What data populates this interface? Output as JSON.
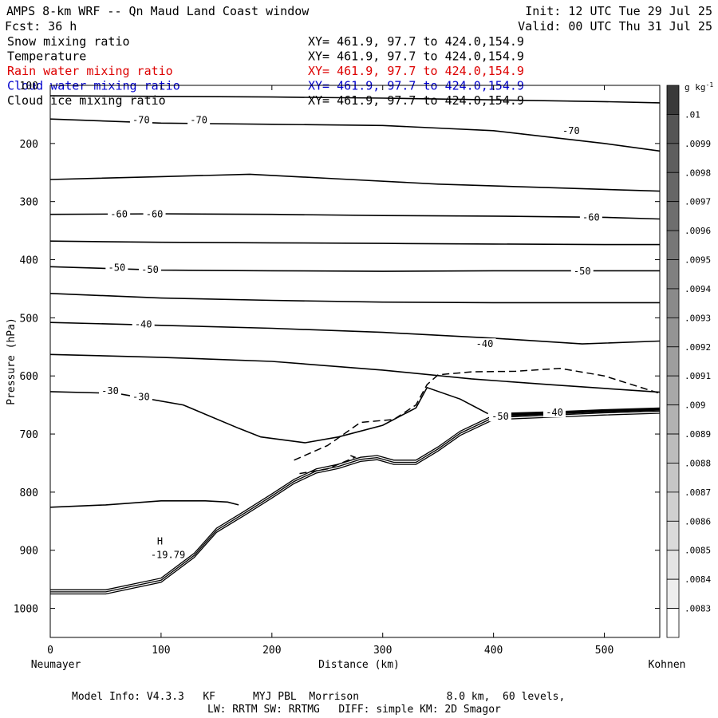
{
  "header": {
    "title": "AMPS 8-km WRF -- Qn Maud Land Coast window",
    "init": "Init: 12 UTC Tue 29 Jul 25",
    "fcst": "Fcst:   36 h",
    "valid": "Valid: 00 UTC Thu 31 Jul 25",
    "fields": [
      {
        "name": "Snow mixing ratio",
        "xy": "XY= 461.9, 97.7 to 424.0,154.9",
        "color": "#000000"
      },
      {
        "name": "Temperature",
        "xy": "XY= 461.9, 97.7 to 424.0,154.9",
        "color": "#000000"
      },
      {
        "name": "Rain water mixing ratio",
        "xy": "XY= 461.9, 97.7 to 424.0,154.9",
        "color": "#dd0000"
      },
      {
        "name": "Cloud water mixing ratio",
        "xy": "XY= 461.9, 97.7 to 424.0,154.9",
        "color": "#0000cc"
      },
      {
        "name": "Cloud ice mixing ratio",
        "xy": "XY= 461.9, 97.7 to 424.0,154.9",
        "color": "#000000"
      }
    ]
  },
  "chart_data": {
    "type": "contour",
    "xlabel": "Distance (km)",
    "ylabel": "Pressure (hPa)",
    "xlim": [
      0,
      550
    ],
    "ylim": [
      1050,
      100
    ],
    "x_ticks": [
      0,
      100,
      200,
      300,
      400,
      500
    ],
    "y_ticks": [
      100,
      200,
      300,
      400,
      500,
      600,
      700,
      800,
      900,
      1000
    ],
    "x_endpoints": {
      "left": "Neumayer",
      "right": "Kohnen"
    },
    "temperature_contours": [
      {
        "x": [
          0,
          100,
          200,
          300,
          400,
          500,
          550
        ],
        "p": [
          118,
          119,
          120,
          122,
          125,
          128,
          130
        ]
      },
      {
        "x": [
          0,
          100,
          200,
          300,
          400,
          500,
          550
        ],
        "p": [
          158,
          165,
          167,
          169,
          178,
          200,
          213
        ]
      },
      {
        "x": [
          0,
          100,
          180,
          250,
          350,
          450,
          550
        ],
        "p": [
          262,
          257,
          253,
          260,
          270,
          276,
          282
        ]
      },
      {
        "x": [
          0,
          100,
          200,
          300,
          400,
          500,
          550
        ],
        "p": [
          322,
          321,
          322,
          324,
          325,
          327,
          330
        ]
      },
      {
        "x": [
          0,
          100,
          200,
          300,
          400,
          500,
          550
        ],
        "p": [
          368,
          370,
          371,
          372,
          373,
          374,
          374
        ]
      },
      {
        "x": [
          0,
          100,
          200,
          300,
          400,
          500,
          550
        ],
        "p": [
          412,
          418,
          419,
          420,
          419,
          419,
          419
        ]
      },
      {
        "x": [
          0,
          100,
          200,
          300,
          400,
          500,
          550
        ],
        "p": [
          458,
          466,
          470,
          473,
          474,
          474,
          474
        ]
      },
      {
        "x": [
          0,
          100,
          200,
          300,
          400,
          480,
          550
        ],
        "p": [
          508,
          513,
          518,
          525,
          535,
          545,
          540
        ]
      },
      {
        "x": [
          0,
          100,
          200,
          300,
          380,
          450,
          550
        ],
        "p": [
          563,
          568,
          575,
          590,
          605,
          615,
          628
        ]
      },
      {
        "x": [
          0,
          60,
          120,
          170,
          190,
          230,
          260,
          300,
          330,
          340,
          370,
          395
        ],
        "p": [
          627,
          630,
          650,
          690,
          705,
          715,
          705,
          685,
          655,
          620,
          640,
          665
        ]
      },
      {
        "x": [
          0,
          50,
          100,
          140,
          160,
          170
        ],
        "p": [
          826,
          822,
          815,
          815,
          817,
          822
        ]
      },
      {
        "x": [
          400,
          450,
          500,
          550
        ],
        "p": [
          665,
          662,
          660,
          657
        ]
      }
    ],
    "dashed_contours": [
      {
        "x": [
          220,
          250,
          280,
          310,
          330,
          340,
          350,
          380,
          420,
          460,
          500,
          550
        ],
        "p": [
          745,
          720,
          680,
          675,
          650,
          615,
          598,
          593,
          592,
          587,
          600,
          630
        ]
      },
      {
        "x": [
          225,
          250,
          275,
          268
        ],
        "p": [
          768,
          760,
          740,
          735
        ]
      }
    ],
    "terrain": {
      "x": [
        0,
        50,
        100,
        130,
        150,
        175,
        200,
        220,
        240,
        260,
        280,
        295,
        310,
        330,
        350,
        370,
        400,
        450,
        500,
        550
      ],
      "p": [
        968,
        968,
        948,
        905,
        862,
        833,
        803,
        778,
        760,
        752,
        740,
        737,
        745,
        745,
        722,
        695,
        668,
        664,
        660,
        657
      ]
    },
    "labels": [
      {
        "text": "-70",
        "x": 82,
        "p": 160
      },
      {
        "text": "-70",
        "x": 134,
        "p": 160
      },
      {
        "text": "-70",
        "x": 470,
        "p": 178
      },
      {
        "text": "-60",
        "x": 62,
        "p": 322
      },
      {
        "text": "-60",
        "x": 94,
        "p": 322
      },
      {
        "text": "-60",
        "x": 488,
        "p": 327
      },
      {
        "text": "-50",
        "x": 60,
        "p": 414
      },
      {
        "text": "-50",
        "x": 90,
        "p": 417
      },
      {
        "text": "-50",
        "x": 480,
        "p": 420
      },
      {
        "text": "-40",
        "x": 84,
        "p": 511
      },
      {
        "text": "-40",
        "x": 392,
        "p": 545
      },
      {
        "text": "-40",
        "x": 455,
        "p": 663
      },
      {
        "text": "-30",
        "x": 54,
        "p": 626
      },
      {
        "text": "-30",
        "x": 82,
        "p": 636
      },
      {
        "text": "-50",
        "x": 406,
        "p": 670
      }
    ],
    "extremum": {
      "symbol": "H",
      "value": "-19.79",
      "x": 99,
      "p": 901
    },
    "colorbar": {
      "unit": "g kg",
      "unit_exp": "-1",
      "levels": [
        ".01",
        ".0099",
        ".0098",
        ".0097",
        ".0096",
        ".0095",
        ".0094",
        ".0093",
        ".0092",
        ".0091",
        ".009",
        ".0089",
        ".0088",
        ".0087",
        ".0086",
        ".0085",
        ".0084",
        ".0083"
      ],
      "colors": [
        "#3a3a3a",
        "#555555",
        "#5e5e5e",
        "#666666",
        "#6e6e6e",
        "#777777",
        "#808080",
        "#8a8a8a",
        "#949494",
        "#9e9e9e",
        "#a8a8a8",
        "#b2b2b2",
        "#bcbcbc",
        "#c6c6c6",
        "#d0d0d0",
        "#dadada",
        "#e4e4e4",
        "#eeeeee",
        "#ffffff"
      ]
    }
  },
  "footer": {
    "line1": "Model Info: V4.3.3   KF      MYJ PBL  Morrison              8.0 km,  60 levels,",
    "line2": "LW: RRTM SW: RRTMG   DIFF: simple KM: 2D Smagor"
  }
}
